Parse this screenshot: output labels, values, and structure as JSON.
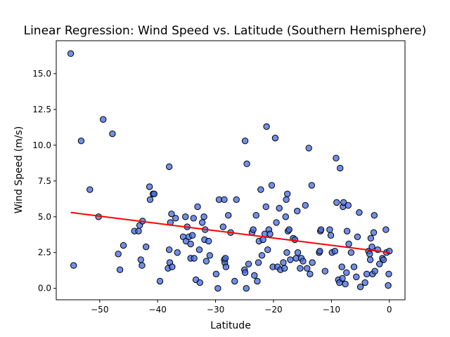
{
  "chart_data": {
    "type": "scatter",
    "title": "Linear Regression: Wind Speed vs. Latitude (Southern Hemisphere)",
    "xlabel": "Latitude",
    "ylabel": "Wind Speed (m/s)",
    "xlim": [
      -57.5,
      2.7
    ],
    "ylim": [
      -0.8,
      17.3
    ],
    "x_ticks": [
      -50,
      -40,
      -30,
      -20,
      -10,
      0
    ],
    "x_tick_labels": [
      "−50",
      "−40",
      "−30",
      "−20",
      "−10",
      "0"
    ],
    "y_ticks": [
      0.0,
      2.5,
      5.0,
      7.5,
      10.0,
      12.5,
      15.0
    ],
    "y_tick_labels": [
      "0.0",
      "2.5",
      "5.0",
      "7.5",
      "10.0",
      "12.5",
      "15.0"
    ],
    "grid": false,
    "colors": {
      "points": "#4169e1",
      "point_edge": "#000000",
      "regression": "#ff0000"
    },
    "regression": {
      "x": [
        -55,
        0
      ],
      "y": [
        5.3,
        2.5
      ]
    },
    "points": [
      [
        -55.0,
        16.4
      ],
      [
        -54.5,
        1.6
      ],
      [
        -53.2,
        10.3
      ],
      [
        -51.7,
        6.9
      ],
      [
        -50.2,
        5.0
      ],
      [
        -49.4,
        11.8
      ],
      [
        -47.8,
        10.8
      ],
      [
        -46.8,
        2.4
      ],
      [
        -46.5,
        1.3
      ],
      [
        -45.9,
        3.0
      ],
      [
        -44.0,
        4.0
      ],
      [
        -43.3,
        4.0
      ],
      [
        -43.1,
        4.4
      ],
      [
        -42.9,
        2.0
      ],
      [
        -42.7,
        1.6
      ],
      [
        -42.6,
        4.7
      ],
      [
        -42.0,
        2.9
      ],
      [
        -41.4,
        7.1
      ],
      [
        -41.3,
        6.2
      ],
      [
        -40.8,
        6.6
      ],
      [
        -40.6,
        6.6
      ],
      [
        -39.6,
        0.5
      ],
      [
        -38.2,
        1.4
      ],
      [
        -38.0,
        8.5
      ],
      [
        -38.0,
        2.7
      ],
      [
        -37.9,
        1.8
      ],
      [
        -37.8,
        4.6
      ],
      [
        -37.6,
        5.2
      ],
      [
        -37.5,
        1.5
      ],
      [
        -36.9,
        4.9
      ],
      [
        -36.6,
        2.5
      ],
      [
        -35.6,
        3.6
      ],
      [
        -35.2,
        5.0
      ],
      [
        -35.1,
        3.3
      ],
      [
        -34.9,
        4.3
      ],
      [
        -34.6,
        3.6
      ],
      [
        -34.3,
        2.1
      ],
      [
        -34.3,
        3.1
      ],
      [
        -34.0,
        3.7
      ],
      [
        -33.8,
        4.9
      ],
      [
        -33.7,
        2.1
      ],
      [
        -33.4,
        0.6
      ],
      [
        -33.1,
        5.7
      ],
      [
        -32.8,
        2.7
      ],
      [
        -32.7,
        0.4
      ],
      [
        -32.3,
        4.6
      ],
      [
        -32.0,
        5.0
      ],
      [
        -31.9,
        3.4
      ],
      [
        -31.8,
        4.1
      ],
      [
        -31.6,
        1.9
      ],
      [
        -31.2,
        3.3
      ],
      [
        -31.0,
        2.3
      ],
      [
        -29.9,
        1.0
      ],
      [
        -29.6,
        0.0
      ],
      [
        -29.4,
        6.2
      ],
      [
        -28.7,
        4.3
      ],
      [
        -28.5,
        6.2
      ],
      [
        -28.5,
        2.0
      ],
      [
        -28.4,
        1.8
      ],
      [
        -28.3,
        2.1
      ],
      [
        -28.2,
        1.5
      ],
      [
        -27.8,
        5.1
      ],
      [
        -27.4,
        3.9
      ],
      [
        -26.7,
        0.5
      ],
      [
        -26.4,
        6.2
      ],
      [
        -25.0,
        1.3
      ],
      [
        -24.9,
        1.1
      ],
      [
        -24.9,
        10.3
      ],
      [
        -24.7,
        0.0
      ],
      [
        -24.6,
        8.7
      ],
      [
        -24.3,
        1.7
      ],
      [
        -23.7,
        3.9
      ],
      [
        -23.5,
        4.1
      ],
      [
        -23.3,
        0.9
      ],
      [
        -23.0,
        5.1
      ],
      [
        -22.8,
        0.5
      ],
      [
        -22.6,
        1.8
      ],
      [
        -22.5,
        3.3
      ],
      [
        -22.2,
        6.9
      ],
      [
        -22.0,
        2.3
      ],
      [
        -21.8,
        3.4
      ],
      [
        -21.5,
        3.8
      ],
      [
        -21.3,
        5.7
      ],
      [
        -21.2,
        11.3
      ],
      [
        -21.0,
        2.7
      ],
      [
        -20.8,
        4.1
      ],
      [
        -20.6,
        3.8
      ],
      [
        -20.3,
        7.2
      ],
      [
        -20.1,
        1.5
      ],
      [
        -19.7,
        10.5
      ],
      [
        -19.5,
        4.6
      ],
      [
        -19.3,
        1.5
      ],
      [
        -19.0,
        5.6
      ],
      [
        -18.8,
        1.3
      ],
      [
        -18.3,
        1.8
      ],
      [
        -18.1,
        1.4
      ],
      [
        -17.9,
        5.0
      ],
      [
        -17.8,
        6.2
      ],
      [
        -17.7,
        2.5
      ],
      [
        -17.6,
        6.6
      ],
      [
        -17.5,
        4.0
      ],
      [
        -17.3,
        4.1
      ],
      [
        -17.1,
        2.0
      ],
      [
        -16.6,
        3.5
      ],
      [
        -16.3,
        3.4
      ],
      [
        -16.1,
        2.1
      ],
      [
        -15.9,
        5.4
      ],
      [
        -15.8,
        2.5
      ],
      [
        -15.4,
        1.4
      ],
      [
        -15.2,
        2.1
      ],
      [
        -14.9,
        1.9
      ],
      [
        -14.5,
        5.8
      ],
      [
        -14.2,
        1.4
      ],
      [
        -13.9,
        9.8
      ],
      [
        -13.7,
        1.0
      ],
      [
        -13.4,
        7.2
      ],
      [
        -13.3,
        1.8
      ],
      [
        -12.1,
        2.5
      ],
      [
        -12.0,
        2.6
      ],
      [
        -11.9,
        4.0
      ],
      [
        -11.8,
        4.1
      ],
      [
        -11.1,
        1.2
      ],
      [
        -10.3,
        4.1
      ],
      [
        -10.1,
        3.7
      ],
      [
        -9.9,
        2.5
      ],
      [
        -9.4,
        2.6
      ],
      [
        -9.2,
        9.1
      ],
      [
        -9.1,
        6.0
      ],
      [
        -8.8,
        0.6
      ],
      [
        -8.6,
        0.4
      ],
      [
        -8.5,
        8.4
      ],
      [
        -8.2,
        1.5
      ],
      [
        -8.1,
        0.7
      ],
      [
        -8.0,
        5.7
      ],
      [
        -7.9,
        6.0
      ],
      [
        -7.6,
        0.3
      ],
      [
        -7.4,
        1.1
      ],
      [
        -7.3,
        4.0
      ],
      [
        -7.1,
        5.8
      ],
      [
        -7.0,
        3.1
      ],
      [
        -6.6,
        2.5
      ],
      [
        -6.1,
        1.5
      ],
      [
        -5.7,
        0.8
      ],
      [
        -5.5,
        3.6
      ],
      [
        -5.2,
        5.3
      ],
      [
        -5.0,
        0.1
      ],
      [
        -4.2,
        0.4
      ],
      [
        -3.9,
        1.0
      ],
      [
        -3.6,
        2.6
      ],
      [
        -3.4,
        2.4
      ],
      [
        -3.3,
        2.0
      ],
      [
        -3.2,
        3.5
      ],
      [
        -3.0,
        2.9
      ],
      [
        -2.9,
        1.0
      ],
      [
        -2.7,
        3.9
      ],
      [
        -2.6,
        5.1
      ],
      [
        -2.5,
        1.2
      ],
      [
        -2.0,
        2.7
      ],
      [
        -1.7,
        1.7
      ],
      [
        -1.2,
        2.1
      ],
      [
        -1.0,
        2.0
      ],
      [
        -0.6,
        4.1
      ],
      [
        -0.5,
        2.5
      ],
      [
        -0.2,
        0.2
      ],
      [
        -0.1,
        1.0
      ],
      [
        0.0,
        2.6
      ]
    ]
  }
}
